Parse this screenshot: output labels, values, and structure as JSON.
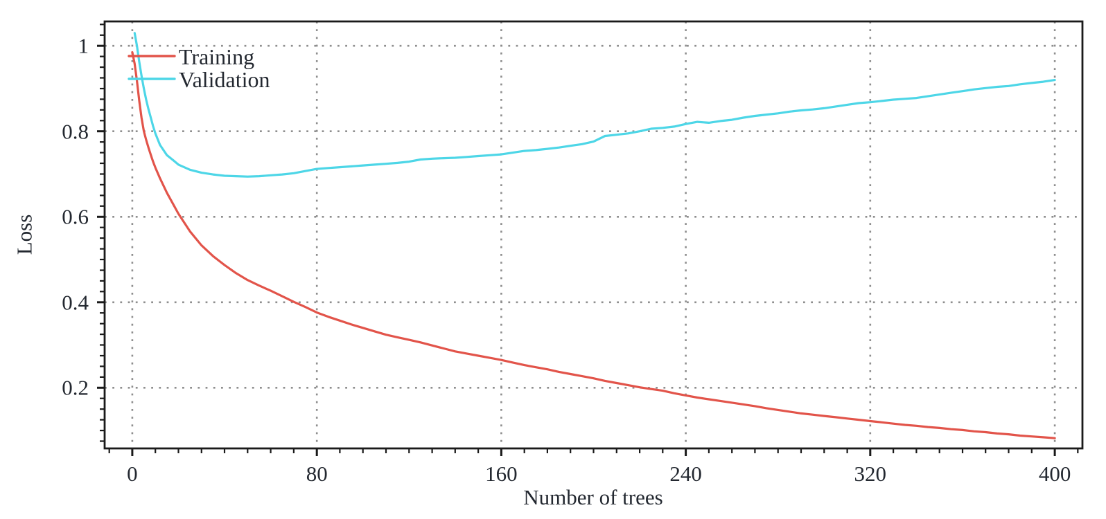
{
  "page": {
    "background": "#ffffff"
  },
  "chart_data": {
    "type": "line",
    "title": "",
    "xlabel": "Number of trees",
    "ylabel": "Loss",
    "x_axis": {
      "label": "Number of trees",
      "range": [
        -12,
        412
      ],
      "major_ticks": [
        0,
        80,
        160,
        240,
        320,
        400
      ],
      "major_tick_labels": [
        "0",
        "80",
        "160",
        "240",
        "320",
        "400"
      ],
      "minor_tick_step": 10,
      "grid": true
    },
    "y_axis": {
      "label": "Loss",
      "range": [
        0.058,
        1.057
      ],
      "major_ticks": [
        0.2,
        0.4,
        0.6,
        0.8,
        1.0
      ],
      "major_tick_labels": [
        "0.2",
        "0.4",
        "0.6",
        "0.8",
        "1"
      ],
      "minor_tick_step": 0.025,
      "grid": true
    },
    "legend": {
      "position": "top-left",
      "entries": [
        {
          "label": "Training",
          "color": "#e2544a"
        },
        {
          "label": "Validation",
          "color": "#4dd6e7"
        }
      ]
    },
    "styles": {
      "axis_color": "#1a1a1a",
      "grid_color": "#8e8e8e",
      "text_color": "#232830",
      "background": "#ffffff"
    },
    "series": [
      {
        "name": "Training",
        "color": "#e2544a",
        "points": [
          [
            0,
            0.985
          ],
          [
            1,
            0.958
          ],
          [
            2,
            0.918
          ],
          [
            3,
            0.872
          ],
          [
            4,
            0.832
          ],
          [
            5,
            0.8
          ],
          [
            6,
            0.78
          ],
          [
            7,
            0.762
          ],
          [
            8,
            0.745
          ],
          [
            9,
            0.729
          ],
          [
            10,
            0.715
          ],
          [
            12,
            0.69
          ],
          [
            15,
            0.656
          ],
          [
            20,
            0.607
          ],
          [
            25,
            0.566
          ],
          [
            30,
            0.533
          ],
          [
            35,
            0.508
          ],
          [
            40,
            0.487
          ],
          [
            45,
            0.468
          ],
          [
            50,
            0.452
          ],
          [
            55,
            0.439
          ],
          [
            60,
            0.427
          ],
          [
            65,
            0.414
          ],
          [
            70,
            0.401
          ],
          [
            75,
            0.389
          ],
          [
            80,
            0.376
          ],
          [
            85,
            0.366
          ],
          [
            90,
            0.357
          ],
          [
            95,
            0.348
          ],
          [
            100,
            0.34
          ],
          [
            105,
            0.332
          ],
          [
            110,
            0.324
          ],
          [
            115,
            0.318
          ],
          [
            120,
            0.312
          ],
          [
            125,
            0.306
          ],
          [
            130,
            0.299
          ],
          [
            135,
            0.292
          ],
          [
            140,
            0.285
          ],
          [
            145,
            0.28
          ],
          [
            150,
            0.275
          ],
          [
            155,
            0.27
          ],
          [
            160,
            0.265
          ],
          [
            165,
            0.259
          ],
          [
            170,
            0.253
          ],
          [
            175,
            0.248
          ],
          [
            180,
            0.243
          ],
          [
            185,
            0.237
          ],
          [
            190,
            0.232
          ],
          [
            195,
            0.227
          ],
          [
            200,
            0.222
          ],
          [
            205,
            0.216
          ],
          [
            210,
            0.211
          ],
          [
            215,
            0.206
          ],
          [
            220,
            0.201
          ],
          [
            225,
            0.197
          ],
          [
            230,
            0.193
          ],
          [
            235,
            0.187
          ],
          [
            240,
            0.182
          ],
          [
            245,
            0.177
          ],
          [
            250,
            0.173
          ],
          [
            255,
            0.169
          ],
          [
            260,
            0.165
          ],
          [
            265,
            0.161
          ],
          [
            270,
            0.157
          ],
          [
            275,
            0.152
          ],
          [
            280,
            0.148
          ],
          [
            285,
            0.144
          ],
          [
            290,
            0.14
          ],
          [
            295,
            0.137
          ],
          [
            300,
            0.134
          ],
          [
            305,
            0.131
          ],
          [
            310,
            0.128
          ],
          [
            315,
            0.125
          ],
          [
            320,
            0.122
          ],
          [
            325,
            0.119
          ],
          [
            330,
            0.116
          ],
          [
            335,
            0.113
          ],
          [
            340,
            0.111
          ],
          [
            345,
            0.108
          ],
          [
            350,
            0.106
          ],
          [
            355,
            0.103
          ],
          [
            360,
            0.101
          ],
          [
            365,
            0.098
          ],
          [
            370,
            0.096
          ],
          [
            375,
            0.093
          ],
          [
            380,
            0.091
          ],
          [
            385,
            0.088
          ],
          [
            390,
            0.086
          ],
          [
            395,
            0.084
          ],
          [
            400,
            0.082
          ]
        ]
      },
      {
        "name": "Validation",
        "color": "#4dd6e7",
        "points": [
          [
            1,
            1.03
          ],
          [
            2,
            1.0
          ],
          [
            3,
            0.963
          ],
          [
            4,
            0.93
          ],
          [
            5,
            0.9
          ],
          [
            6,
            0.874
          ],
          [
            7,
            0.852
          ],
          [
            8,
            0.832
          ],
          [
            9,
            0.812
          ],
          [
            10,
            0.795
          ],
          [
            12,
            0.768
          ],
          [
            15,
            0.744
          ],
          [
            18,
            0.731
          ],
          [
            20,
            0.722
          ],
          [
            25,
            0.71
          ],
          [
            30,
            0.703
          ],
          [
            35,
            0.699
          ],
          [
            40,
            0.696
          ],
          [
            45,
            0.695
          ],
          [
            50,
            0.694
          ],
          [
            55,
            0.695
          ],
          [
            60,
            0.697
          ],
          [
            65,
            0.699
          ],
          [
            70,
            0.702
          ],
          [
            75,
            0.707
          ],
          [
            80,
            0.712
          ],
          [
            85,
            0.714
          ],
          [
            90,
            0.716
          ],
          [
            95,
            0.718
          ],
          [
            100,
            0.72
          ],
          [
            105,
            0.722
          ],
          [
            110,
            0.724
          ],
          [
            115,
            0.726
          ],
          [
            120,
            0.729
          ],
          [
            125,
            0.734
          ],
          [
            130,
            0.736
          ],
          [
            135,
            0.737
          ],
          [
            140,
            0.738
          ],
          [
            145,
            0.74
          ],
          [
            150,
            0.742
          ],
          [
            155,
            0.744
          ],
          [
            160,
            0.746
          ],
          [
            165,
            0.75
          ],
          [
            170,
            0.754
          ],
          [
            175,
            0.756
          ],
          [
            180,
            0.759
          ],
          [
            185,
            0.762
          ],
          [
            190,
            0.766
          ],
          [
            195,
            0.77
          ],
          [
            200,
            0.776
          ],
          [
            205,
            0.789
          ],
          [
            210,
            0.792
          ],
          [
            215,
            0.795
          ],
          [
            220,
            0.8
          ],
          [
            225,
            0.806
          ],
          [
            230,
            0.808
          ],
          [
            235,
            0.811
          ],
          [
            240,
            0.817
          ],
          [
            245,
            0.822
          ],
          [
            250,
            0.82
          ],
          [
            255,
            0.824
          ],
          [
            260,
            0.827
          ],
          [
            265,
            0.832
          ],
          [
            270,
            0.836
          ],
          [
            275,
            0.839
          ],
          [
            280,
            0.842
          ],
          [
            285,
            0.846
          ],
          [
            290,
            0.849
          ],
          [
            295,
            0.851
          ],
          [
            300,
            0.854
          ],
          [
            305,
            0.858
          ],
          [
            310,
            0.862
          ],
          [
            315,
            0.866
          ],
          [
            320,
            0.868
          ],
          [
            325,
            0.871
          ],
          [
            330,
            0.874
          ],
          [
            335,
            0.876
          ],
          [
            340,
            0.878
          ],
          [
            345,
            0.882
          ],
          [
            350,
            0.886
          ],
          [
            355,
            0.89
          ],
          [
            360,
            0.894
          ],
          [
            365,
            0.898
          ],
          [
            370,
            0.901
          ],
          [
            375,
            0.904
          ],
          [
            380,
            0.906
          ],
          [
            385,
            0.91
          ],
          [
            390,
            0.913
          ],
          [
            395,
            0.916
          ],
          [
            400,
            0.92
          ]
        ]
      }
    ]
  }
}
